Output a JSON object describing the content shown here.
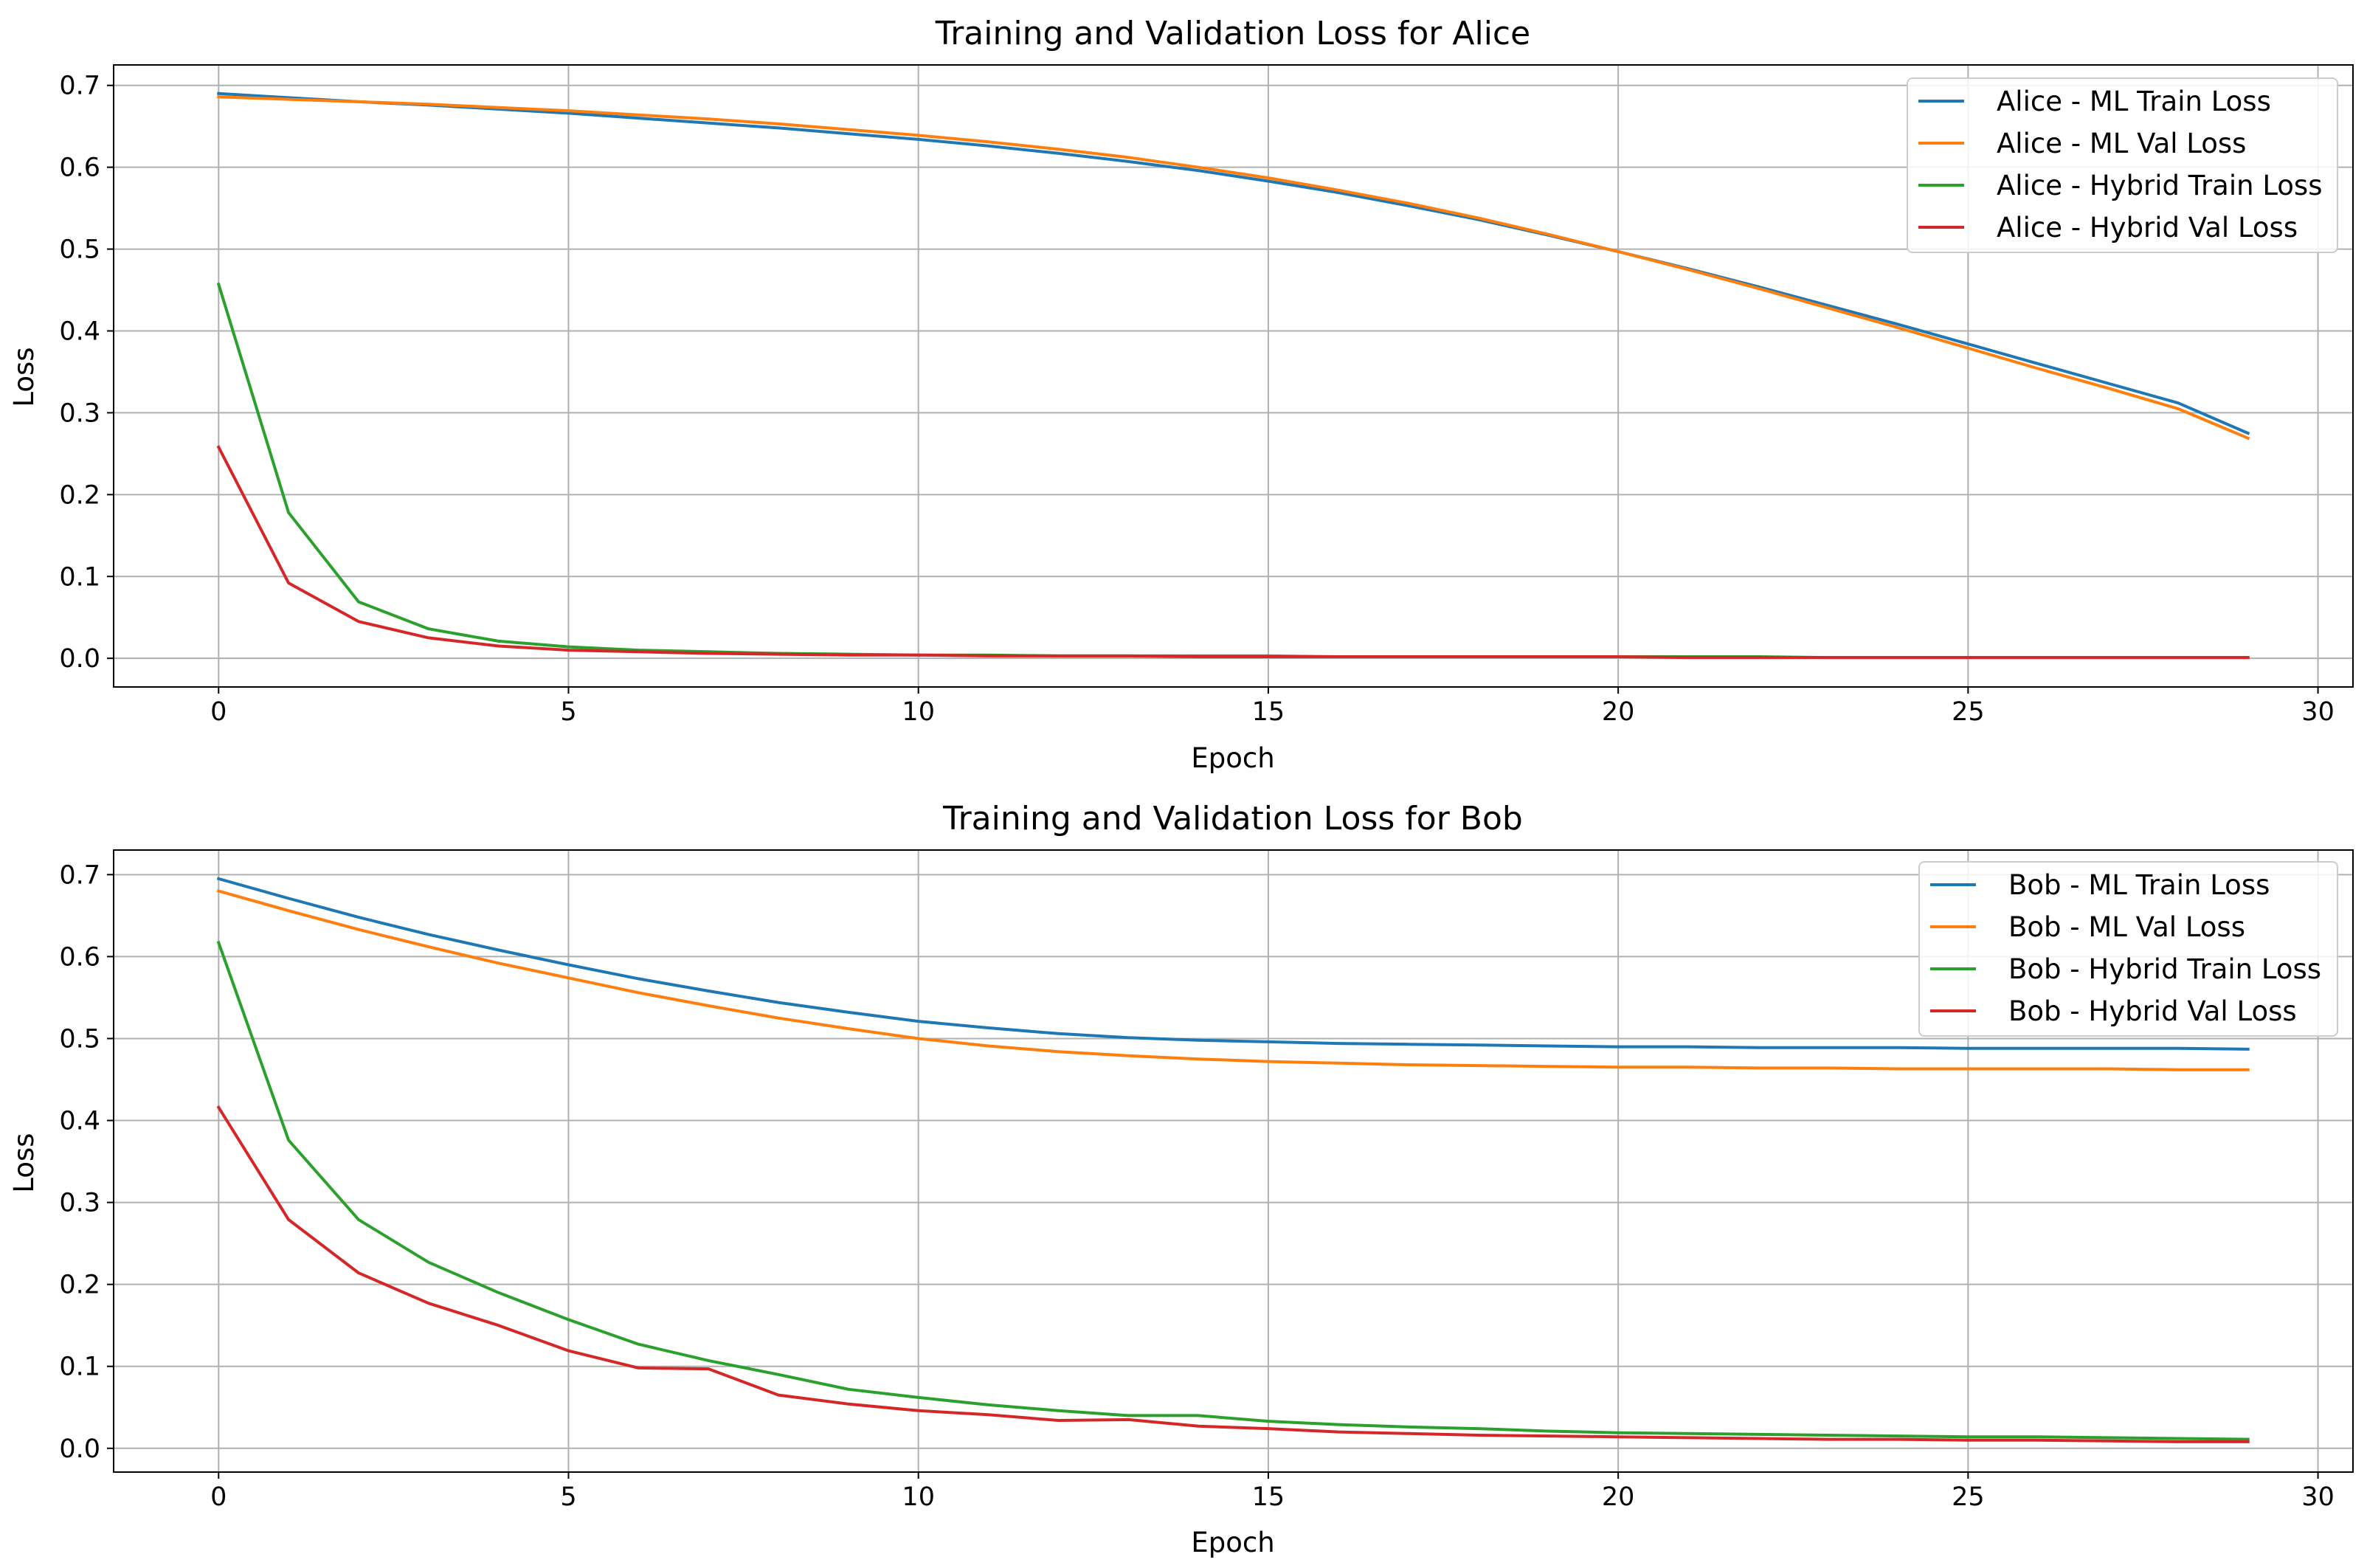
{
  "chart_data": [
    {
      "type": "line",
      "title": "Training and Validation Loss for Alice",
      "xlabel": "Epoch",
      "ylabel": "Loss",
      "xlim": [
        -1.5,
        30.5
      ],
      "ylim": [
        -0.035,
        0.725
      ],
      "xticks": [
        0,
        5,
        10,
        15,
        20,
        25,
        30
      ],
      "yticks": [
        0.0,
        0.1,
        0.2,
        0.3,
        0.4,
        0.5,
        0.6,
        0.7
      ],
      "xtick_labels": [
        "0",
        "5",
        "10",
        "15",
        "20",
        "25",
        "30"
      ],
      "ytick_labels": [
        "0.0",
        "0.1",
        "0.2",
        "0.3",
        "0.4",
        "0.5",
        "0.6",
        "0.7"
      ],
      "grid": true,
      "legend_position": "top-right",
      "x": [
        0,
        1,
        2,
        3,
        4,
        5,
        6,
        7,
        8,
        9,
        10,
        11,
        12,
        13,
        14,
        15,
        16,
        17,
        18,
        19,
        20,
        21,
        22,
        23,
        24,
        25,
        26,
        27,
        28,
        29
      ],
      "series": [
        {
          "name": "Alice - ML Train Loss",
          "color": "#1f77b4",
          "values": [
            0.69,
            0.685,
            0.68,
            0.676,
            0.671,
            0.666,
            0.66,
            0.654,
            0.648,
            0.641,
            0.634,
            0.626,
            0.617,
            0.607,
            0.596,
            0.583,
            0.569,
            0.553,
            0.536,
            0.517,
            0.497,
            0.476,
            0.454,
            0.431,
            0.408,
            0.384,
            0.36,
            0.336,
            0.312,
            0.275
          ]
        },
        {
          "name": "Alice - ML Val Loss",
          "color": "#ff7f0e",
          "values": [
            0.686,
            0.683,
            0.68,
            0.677,
            0.673,
            0.669,
            0.664,
            0.659,
            0.653,
            0.646,
            0.639,
            0.631,
            0.622,
            0.612,
            0.6,
            0.587,
            0.572,
            0.556,
            0.538,
            0.518,
            0.497,
            0.475,
            0.452,
            0.428,
            0.404,
            0.379,
            0.354,
            0.33,
            0.305,
            0.269
          ]
        },
        {
          "name": "Alice - Hybrid Train Loss",
          "color": "#2ca02c",
          "values": [
            0.457,
            0.178,
            0.069,
            0.036,
            0.021,
            0.014,
            0.01,
            0.008,
            0.006,
            0.005,
            0.004,
            0.004,
            0.003,
            0.003,
            0.003,
            0.003,
            0.002,
            0.002,
            0.002,
            0.002,
            0.002,
            0.002,
            0.002,
            0.001,
            0.001,
            0.001,
            0.001,
            0.001,
            0.001,
            0.001
          ]
        },
        {
          "name": "Alice - Hybrid Val Loss",
          "color": "#d62728",
          "values": [
            0.258,
            0.092,
            0.045,
            0.025,
            0.015,
            0.01,
            0.008,
            0.006,
            0.005,
            0.004,
            0.004,
            0.003,
            0.003,
            0.003,
            0.002,
            0.002,
            0.002,
            0.002,
            0.002,
            0.002,
            0.002,
            0.001,
            0.001,
            0.001,
            0.001,
            0.001,
            0.001,
            0.001,
            0.001,
            0.001
          ]
        }
      ]
    },
    {
      "type": "line",
      "title": "Training and Validation Loss for Bob",
      "xlabel": "Epoch",
      "ylabel": "Loss",
      "xlim": [
        -1.5,
        30.5
      ],
      "ylim": [
        -0.029,
        0.73
      ],
      "xticks": [
        0,
        5,
        10,
        15,
        20,
        25,
        30
      ],
      "yticks": [
        0.0,
        0.1,
        0.2,
        0.3,
        0.4,
        0.5,
        0.6,
        0.7
      ],
      "xtick_labels": [
        "0",
        "5",
        "10",
        "15",
        "20",
        "25",
        "30"
      ],
      "ytick_labels": [
        "0.0",
        "0.1",
        "0.2",
        "0.3",
        "0.4",
        "0.5",
        "0.6",
        "0.7"
      ],
      "grid": true,
      "legend_position": "top-right",
      "x": [
        0,
        1,
        2,
        3,
        4,
        5,
        6,
        7,
        8,
        9,
        10,
        11,
        12,
        13,
        14,
        15,
        16,
        17,
        18,
        19,
        20,
        21,
        22,
        23,
        24,
        25,
        26,
        27,
        28,
        29
      ],
      "series": [
        {
          "name": "Bob - ML Train Loss",
          "color": "#1f77b4",
          "values": [
            0.695,
            0.671,
            0.648,
            0.627,
            0.608,
            0.59,
            0.573,
            0.558,
            0.544,
            0.532,
            0.521,
            0.513,
            0.506,
            0.501,
            0.498,
            0.496,
            0.494,
            0.493,
            0.492,
            0.491,
            0.49,
            0.49,
            0.489,
            0.489,
            0.489,
            0.488,
            0.488,
            0.488,
            0.488,
            0.487
          ]
        },
        {
          "name": "Bob - ML Val Loss",
          "color": "#ff7f0e",
          "values": [
            0.68,
            0.656,
            0.633,
            0.612,
            0.592,
            0.574,
            0.556,
            0.54,
            0.525,
            0.512,
            0.5,
            0.491,
            0.484,
            0.479,
            0.475,
            0.472,
            0.47,
            0.468,
            0.467,
            0.466,
            0.465,
            0.465,
            0.464,
            0.464,
            0.463,
            0.463,
            0.463,
            0.463,
            0.462,
            0.462
          ]
        },
        {
          "name": "Bob - Hybrid Train Loss",
          "color": "#2ca02c",
          "values": [
            0.617,
            0.376,
            0.279,
            0.227,
            0.19,
            0.157,
            0.127,
            0.107,
            0.09,
            0.072,
            0.062,
            0.053,
            0.046,
            0.04,
            0.04,
            0.033,
            0.029,
            0.026,
            0.024,
            0.021,
            0.019,
            0.018,
            0.017,
            0.016,
            0.015,
            0.014,
            0.014,
            0.013,
            0.012,
            0.011
          ]
        },
        {
          "name": "Bob - Hybrid Val Loss",
          "color": "#d62728",
          "values": [
            0.416,
            0.279,
            0.214,
            0.177,
            0.15,
            0.119,
            0.098,
            0.097,
            0.065,
            0.054,
            0.046,
            0.041,
            0.034,
            0.035,
            0.027,
            0.024,
            0.02,
            0.018,
            0.016,
            0.015,
            0.014,
            0.013,
            0.012,
            0.011,
            0.011,
            0.01,
            0.01,
            0.009,
            0.008,
            0.008
          ]
        }
      ]
    }
  ]
}
